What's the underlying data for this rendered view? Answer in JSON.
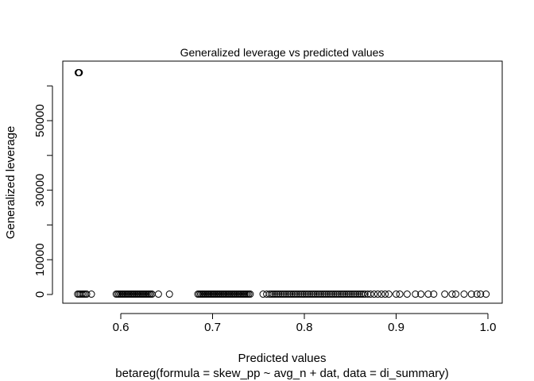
{
  "chart_data": {
    "type": "scatter",
    "title": "Generalized leverage vs predicted values",
    "xlabel": "Predicted values",
    "subtitle": "betareg(formula = skew_pp ~ avg_n + dat, data = di_summary)",
    "ylabel": "Generalized leverage",
    "xlim": [
      0.55,
      1.0
    ],
    "ylim": [
      0,
      64500
    ],
    "x_ticks": [
      0.6,
      0.7,
      0.8,
      0.9,
      1.0
    ],
    "x_tick_labels": [
      "0.6",
      "0.7",
      "0.8",
      "0.9",
      "1.0"
    ],
    "y_ticks": [
      0,
      10000,
      20000,
      30000,
      40000,
      50000,
      60000
    ],
    "y_tick_labels": [
      "0",
      "10000",
      "",
      "30000",
      "",
      "50000",
      ""
    ],
    "marker": "open-circle",
    "grid": false,
    "legend": "none",
    "series": [
      {
        "points": [
          [
            0.5536,
            63800
          ],
          [
            0.5548,
            63800
          ],
          [
            0.5542,
            63800
          ],
          [
            0.553,
            100
          ],
          [
            0.5545,
            100
          ],
          [
            0.556,
            100
          ],
          [
            0.5578,
            100
          ],
          [
            0.5595,
            100
          ],
          [
            0.5612,
            100
          ],
          [
            0.5628,
            100
          ],
          [
            0.568,
            100
          ],
          [
            0.595,
            100
          ],
          [
            0.5965,
            100
          ],
          [
            0.598,
            100
          ],
          [
            0.5995,
            100
          ],
          [
            0.601,
            100
          ],
          [
            0.6025,
            100
          ],
          [
            0.604,
            100
          ],
          [
            0.6055,
            100
          ],
          [
            0.607,
            100
          ],
          [
            0.6085,
            100
          ],
          [
            0.61,
            100
          ],
          [
            0.6115,
            100
          ],
          [
            0.613,
            100
          ],
          [
            0.6145,
            100
          ],
          [
            0.616,
            100
          ],
          [
            0.6175,
            100
          ],
          [
            0.619,
            100
          ],
          [
            0.6205,
            100
          ],
          [
            0.622,
            100
          ],
          [
            0.6235,
            100
          ],
          [
            0.625,
            100
          ],
          [
            0.6265,
            100
          ],
          [
            0.628,
            100
          ],
          [
            0.6295,
            100
          ],
          [
            0.631,
            100
          ],
          [
            0.6325,
            100
          ],
          [
            0.634,
            100
          ],
          [
            0.641,
            100
          ],
          [
            0.653,
            100
          ],
          [
            0.684,
            100
          ],
          [
            0.6855,
            100
          ],
          [
            0.687,
            100
          ],
          [
            0.6885,
            100
          ],
          [
            0.69,
            100
          ],
          [
            0.6915,
            100
          ],
          [
            0.693,
            100
          ],
          [
            0.6945,
            100
          ],
          [
            0.696,
            100
          ],
          [
            0.6975,
            100
          ],
          [
            0.699,
            100
          ],
          [
            0.7005,
            100
          ],
          [
            0.702,
            100
          ],
          [
            0.7035,
            100
          ],
          [
            0.705,
            100
          ],
          [
            0.7065,
            100
          ],
          [
            0.708,
            100
          ],
          [
            0.7095,
            100
          ],
          [
            0.711,
            100
          ],
          [
            0.7125,
            100
          ],
          [
            0.714,
            100
          ],
          [
            0.7155,
            100
          ],
          [
            0.717,
            100
          ],
          [
            0.7185,
            100
          ],
          [
            0.72,
            100
          ],
          [
            0.7215,
            100
          ],
          [
            0.723,
            100
          ],
          [
            0.7245,
            100
          ],
          [
            0.726,
            100
          ],
          [
            0.7275,
            100
          ],
          [
            0.729,
            100
          ],
          [
            0.7305,
            100
          ],
          [
            0.732,
            100
          ],
          [
            0.7335,
            100
          ],
          [
            0.735,
            100
          ],
          [
            0.7365,
            100
          ],
          [
            0.738,
            100
          ],
          [
            0.7395,
            100
          ],
          [
            0.741,
            100
          ],
          [
            0.755,
            100
          ],
          [
            0.759,
            100
          ],
          [
            0.762,
            100
          ],
          [
            0.764,
            100
          ],
          [
            0.766,
            100
          ],
          [
            0.768,
            100
          ],
          [
            0.77,
            100
          ],
          [
            0.772,
            100
          ],
          [
            0.774,
            100
          ],
          [
            0.776,
            100
          ],
          [
            0.778,
            100
          ],
          [
            0.78,
            100
          ],
          [
            0.782,
            100
          ],
          [
            0.784,
            100
          ],
          [
            0.786,
            100
          ],
          [
            0.788,
            100
          ],
          [
            0.79,
            100
          ],
          [
            0.792,
            100
          ],
          [
            0.794,
            100
          ],
          [
            0.796,
            100
          ],
          [
            0.798,
            100
          ],
          [
            0.8,
            100
          ],
          [
            0.802,
            100
          ],
          [
            0.804,
            100
          ],
          [
            0.806,
            100
          ],
          [
            0.808,
            100
          ],
          [
            0.81,
            100
          ],
          [
            0.812,
            100
          ],
          [
            0.814,
            100
          ],
          [
            0.816,
            100
          ],
          [
            0.818,
            100
          ],
          [
            0.82,
            100
          ],
          [
            0.822,
            100
          ],
          [
            0.824,
            100
          ],
          [
            0.826,
            100
          ],
          [
            0.828,
            100
          ],
          [
            0.83,
            100
          ],
          [
            0.832,
            100
          ],
          [
            0.834,
            100
          ],
          [
            0.836,
            100
          ],
          [
            0.838,
            100
          ],
          [
            0.84,
            100
          ],
          [
            0.842,
            100
          ],
          [
            0.844,
            100
          ],
          [
            0.846,
            100
          ],
          [
            0.848,
            100
          ],
          [
            0.85,
            100
          ],
          [
            0.852,
            100
          ],
          [
            0.854,
            100
          ],
          [
            0.856,
            100
          ],
          [
            0.858,
            100
          ],
          [
            0.86,
            100
          ],
          [
            0.862,
            100
          ],
          [
            0.864,
            100
          ],
          [
            0.866,
            100
          ],
          [
            0.869,
            100
          ],
          [
            0.872,
            100
          ],
          [
            0.876,
            100
          ],
          [
            0.88,
            100
          ],
          [
            0.884,
            100
          ],
          [
            0.888,
            100
          ],
          [
            0.892,
            100
          ],
          [
            0.9,
            100
          ],
          [
            0.904,
            100
          ],
          [
            0.912,
            100
          ],
          [
            0.921,
            100
          ],
          [
            0.927,
            100
          ],
          [
            0.935,
            100
          ],
          [
            0.941,
            100
          ],
          [
            0.953,
            100
          ],
          [
            0.961,
            100
          ],
          [
            0.965,
            100
          ],
          [
            0.974,
            100
          ],
          [
            0.982,
            100
          ],
          [
            0.988,
            100
          ],
          [
            0.992,
            100
          ],
          [
            0.998,
            100
          ]
        ]
      }
    ]
  }
}
